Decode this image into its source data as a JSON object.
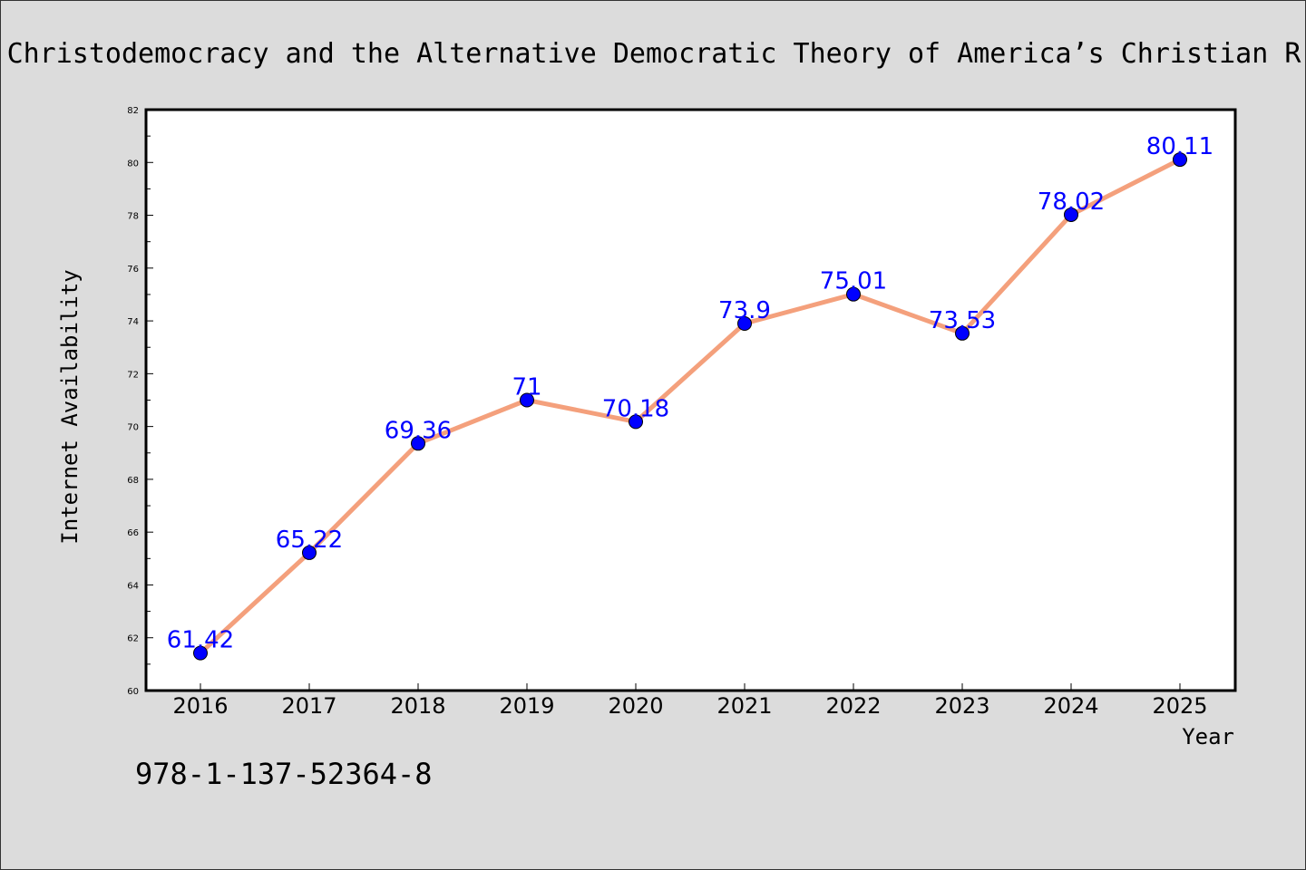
{
  "chart_data": {
    "type": "line",
    "title": "Christodemocracy and the Alternative Democratic Theory of America’s Christian R",
    "xlabel": "Year",
    "ylabel": "Internet Availability",
    "categories": [
      "2016",
      "2017",
      "2018",
      "2019",
      "2020",
      "2021",
      "2022",
      "2023",
      "2024",
      "2025"
    ],
    "series": [
      {
        "values": [
          61.42,
          65.22,
          69.36,
          71,
          70.18,
          73.9,
          75.01,
          73.53,
          78.02,
          80.11
        ],
        "data_labels": [
          "61.42",
          "65.22",
          "69.36",
          "71",
          "70.18",
          "73.9",
          "75.01",
          "73.53",
          "78.02",
          "80.11"
        ],
        "line_color": "#f4a07c",
        "marker_color": "#0000ff"
      }
    ],
    "ylim": [
      60,
      82
    ],
    "yticks": [
      60,
      62,
      64,
      66,
      68,
      70,
      72,
      74,
      76,
      78,
      80,
      82
    ],
    "ytick_labels": [
      "60",
      "62",
      "64",
      "66",
      "68",
      "70",
      "72",
      "74",
      "76",
      "78",
      "80",
      "82"
    ],
    "grid": false,
    "legend": "none"
  },
  "footnote": "978-1-137-52364-8",
  "colors": {
    "background": "#dcdcdc",
    "plot_background": "#ffffff",
    "line": "#f4a07c",
    "marker": "#0000ff",
    "data_label": "#0000ff"
  }
}
